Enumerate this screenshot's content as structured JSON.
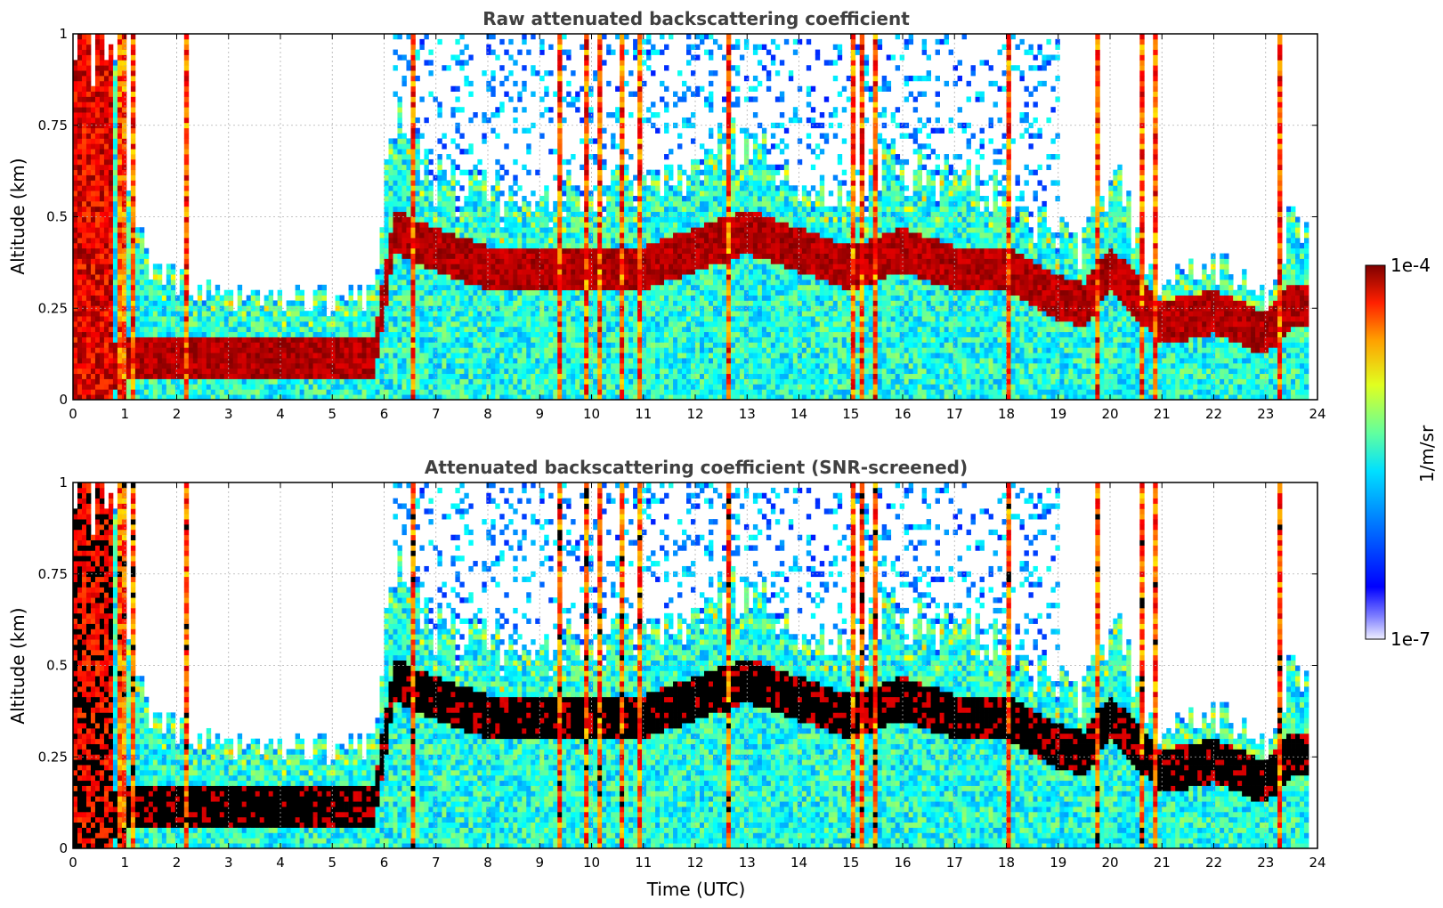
{
  "chart_data": [
    {
      "type": "heatmap",
      "title": "Raw attenuated backscattering coefficient",
      "xlabel": "",
      "ylabel": "Altitude (km)",
      "xlim": [
        0,
        24
      ],
      "ylim": [
        0,
        1
      ],
      "x_ticks": [
        "0",
        "1",
        "2",
        "3",
        "4",
        "5",
        "6",
        "7",
        "8",
        "9",
        "10",
        "11",
        "12",
        "13",
        "14",
        "15",
        "16",
        "17",
        "18",
        "19",
        "20",
        "21",
        "22",
        "23",
        "24"
      ],
      "y_ticks": [
        "0",
        "0.25",
        "0.5",
        "0.75",
        "1"
      ],
      "grid": true,
      "screened": false
    },
    {
      "type": "heatmap",
      "title": "Attenuated backscattering coefficient (SNR-screened)",
      "xlabel": "Time (UTC)",
      "ylabel": "Altitude (km)",
      "xlim": [
        0,
        24
      ],
      "ylim": [
        0,
        1
      ],
      "x_ticks": [
        "0",
        "1",
        "2",
        "3",
        "4",
        "5",
        "6",
        "7",
        "8",
        "9",
        "10",
        "11",
        "12",
        "13",
        "14",
        "15",
        "16",
        "17",
        "18",
        "19",
        "20",
        "21",
        "22",
        "23",
        "24"
      ],
      "y_ticks": [
        "0",
        "0.25",
        "0.5",
        "0.75",
        "1"
      ],
      "grid": true,
      "screened": true
    }
  ],
  "colorbar": {
    "label": "1/m/sr",
    "min_label": "1e-7",
    "max_label": "1e-4",
    "scale": "log",
    "colormap": "jet",
    "saturated_color": "#000000"
  },
  "profile_model": {
    "note_hours": [
      0,
      0.5,
      1,
      1.5,
      2,
      3,
      4,
      5,
      5.8,
      6.2,
      7,
      8,
      9,
      10,
      11,
      12,
      13,
      14,
      15,
      16,
      17,
      18,
      19,
      19.5,
      20,
      21,
      22,
      23,
      23.5,
      23.8
    ],
    "top_km": [
      1.0,
      1.0,
      0.7,
      0.35,
      0.33,
      0.27,
      0.28,
      0.27,
      0.28,
      0.8,
      0.6,
      0.55,
      0.55,
      0.55,
      0.6,
      0.65,
      0.7,
      0.6,
      0.55,
      0.65,
      0.6,
      0.55,
      0.45,
      0.42,
      0.62,
      0.3,
      0.38,
      0.27,
      0.5,
      0.42
    ],
    "cloud_base_km": [
      0.0,
      0.0,
      0.05,
      0.05,
      0.05,
      0.05,
      0.05,
      0.05,
      0.05,
      0.4,
      0.35,
      0.3,
      0.3,
      0.3,
      0.3,
      0.35,
      0.4,
      0.35,
      0.3,
      0.35,
      0.3,
      0.3,
      0.22,
      0.2,
      0.3,
      0.15,
      0.18,
      0.12,
      0.2,
      0.2
    ],
    "data_end_hour": 23.8
  }
}
